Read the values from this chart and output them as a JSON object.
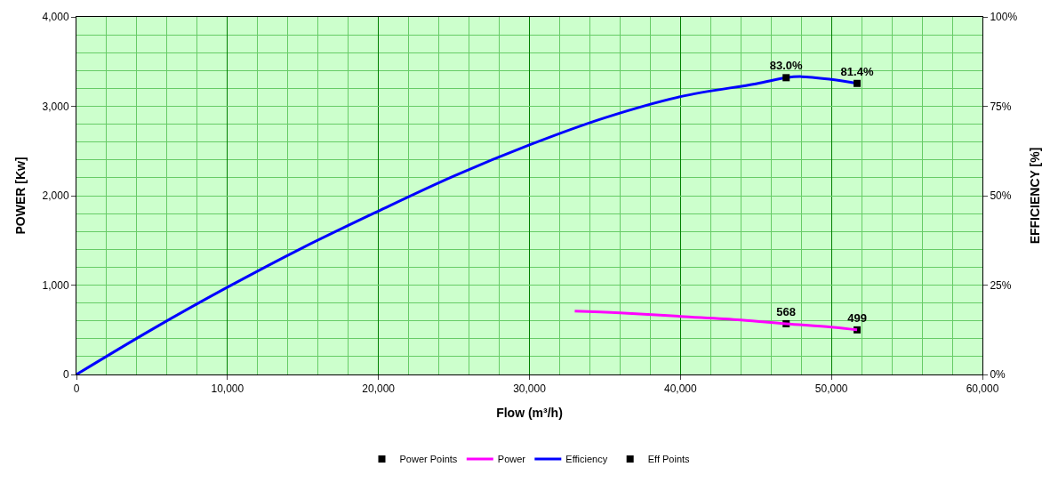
{
  "chart_data": {
    "type": "line",
    "xlabel": "Flow (m³/h)",
    "ylabel": "POWER [Kw]",
    "y2label": "EFFICIENCY [%]",
    "xlim": [
      0,
      60000
    ],
    "xticks": [
      {
        "value": 0,
        "label": "0"
      },
      {
        "value": 10000,
        "label": "10,000"
      },
      {
        "value": 20000,
        "label": "20,000"
      },
      {
        "value": 30000,
        "label": "30,000"
      },
      {
        "value": 40000,
        "label": "40,000"
      },
      {
        "value": 50000,
        "label": "50,000"
      },
      {
        "value": 60000,
        "label": "60,000"
      }
    ],
    "ylim": [
      0,
      4000
    ],
    "yticks": [
      {
        "value": 0,
        "label": "0"
      },
      {
        "value": 1000,
        "label": "1,000"
      },
      {
        "value": 2000,
        "label": "2,000"
      },
      {
        "value": 3000,
        "label": "3,000"
      },
      {
        "value": 4000,
        "label": "4,000"
      }
    ],
    "y2lim": [
      0,
      100
    ],
    "y2ticks": [
      {
        "value": 0,
        "label": "0%"
      },
      {
        "value": 25,
        "label": "25%"
      },
      {
        "value": 50,
        "label": "50%"
      },
      {
        "value": 75,
        "label": "75%"
      },
      {
        "value": 100,
        "label": "100%"
      }
    ],
    "grid": true,
    "legend": "bottom",
    "line_style": "solid",
    "series": [
      {
        "name": "Power Points",
        "type": "scatter",
        "marker": "square",
        "color": "#000000",
        "x": [
          47000,
          51700
        ],
        "values": [
          568,
          499
        ],
        "value_labels": [
          "568",
          "499"
        ]
      },
      {
        "name": "Power",
        "color": "#ff00ff",
        "x": [
          33000,
          36000,
          40000,
          44000,
          47000,
          50000,
          51700
        ],
        "values": [
          710,
          690,
          650,
          610,
          568,
          530,
          499
        ]
      },
      {
        "name": "Efficiency",
        "axis": "y2",
        "color": "#0000ff",
        "x": [
          0,
          5000,
          10000,
          15000,
          20000,
          25000,
          30000,
          35000,
          40000,
          45000,
          47000,
          48000,
          50000,
          51700
        ],
        "values": [
          0,
          12.6,
          24.4,
          35.5,
          45.7,
          55.5,
          64.2,
          71.8,
          77.7,
          81.3,
          83.0,
          83.3,
          82.5,
          81.4
        ]
      },
      {
        "name": "Eff Points",
        "type": "scatter",
        "marker": "square",
        "axis": "y2",
        "color": "#000000",
        "x": [
          47000,
          51700
        ],
        "values": [
          83.0,
          81.4
        ],
        "value_labels": [
          "83.0%",
          "81.4%"
        ]
      }
    ]
  }
}
